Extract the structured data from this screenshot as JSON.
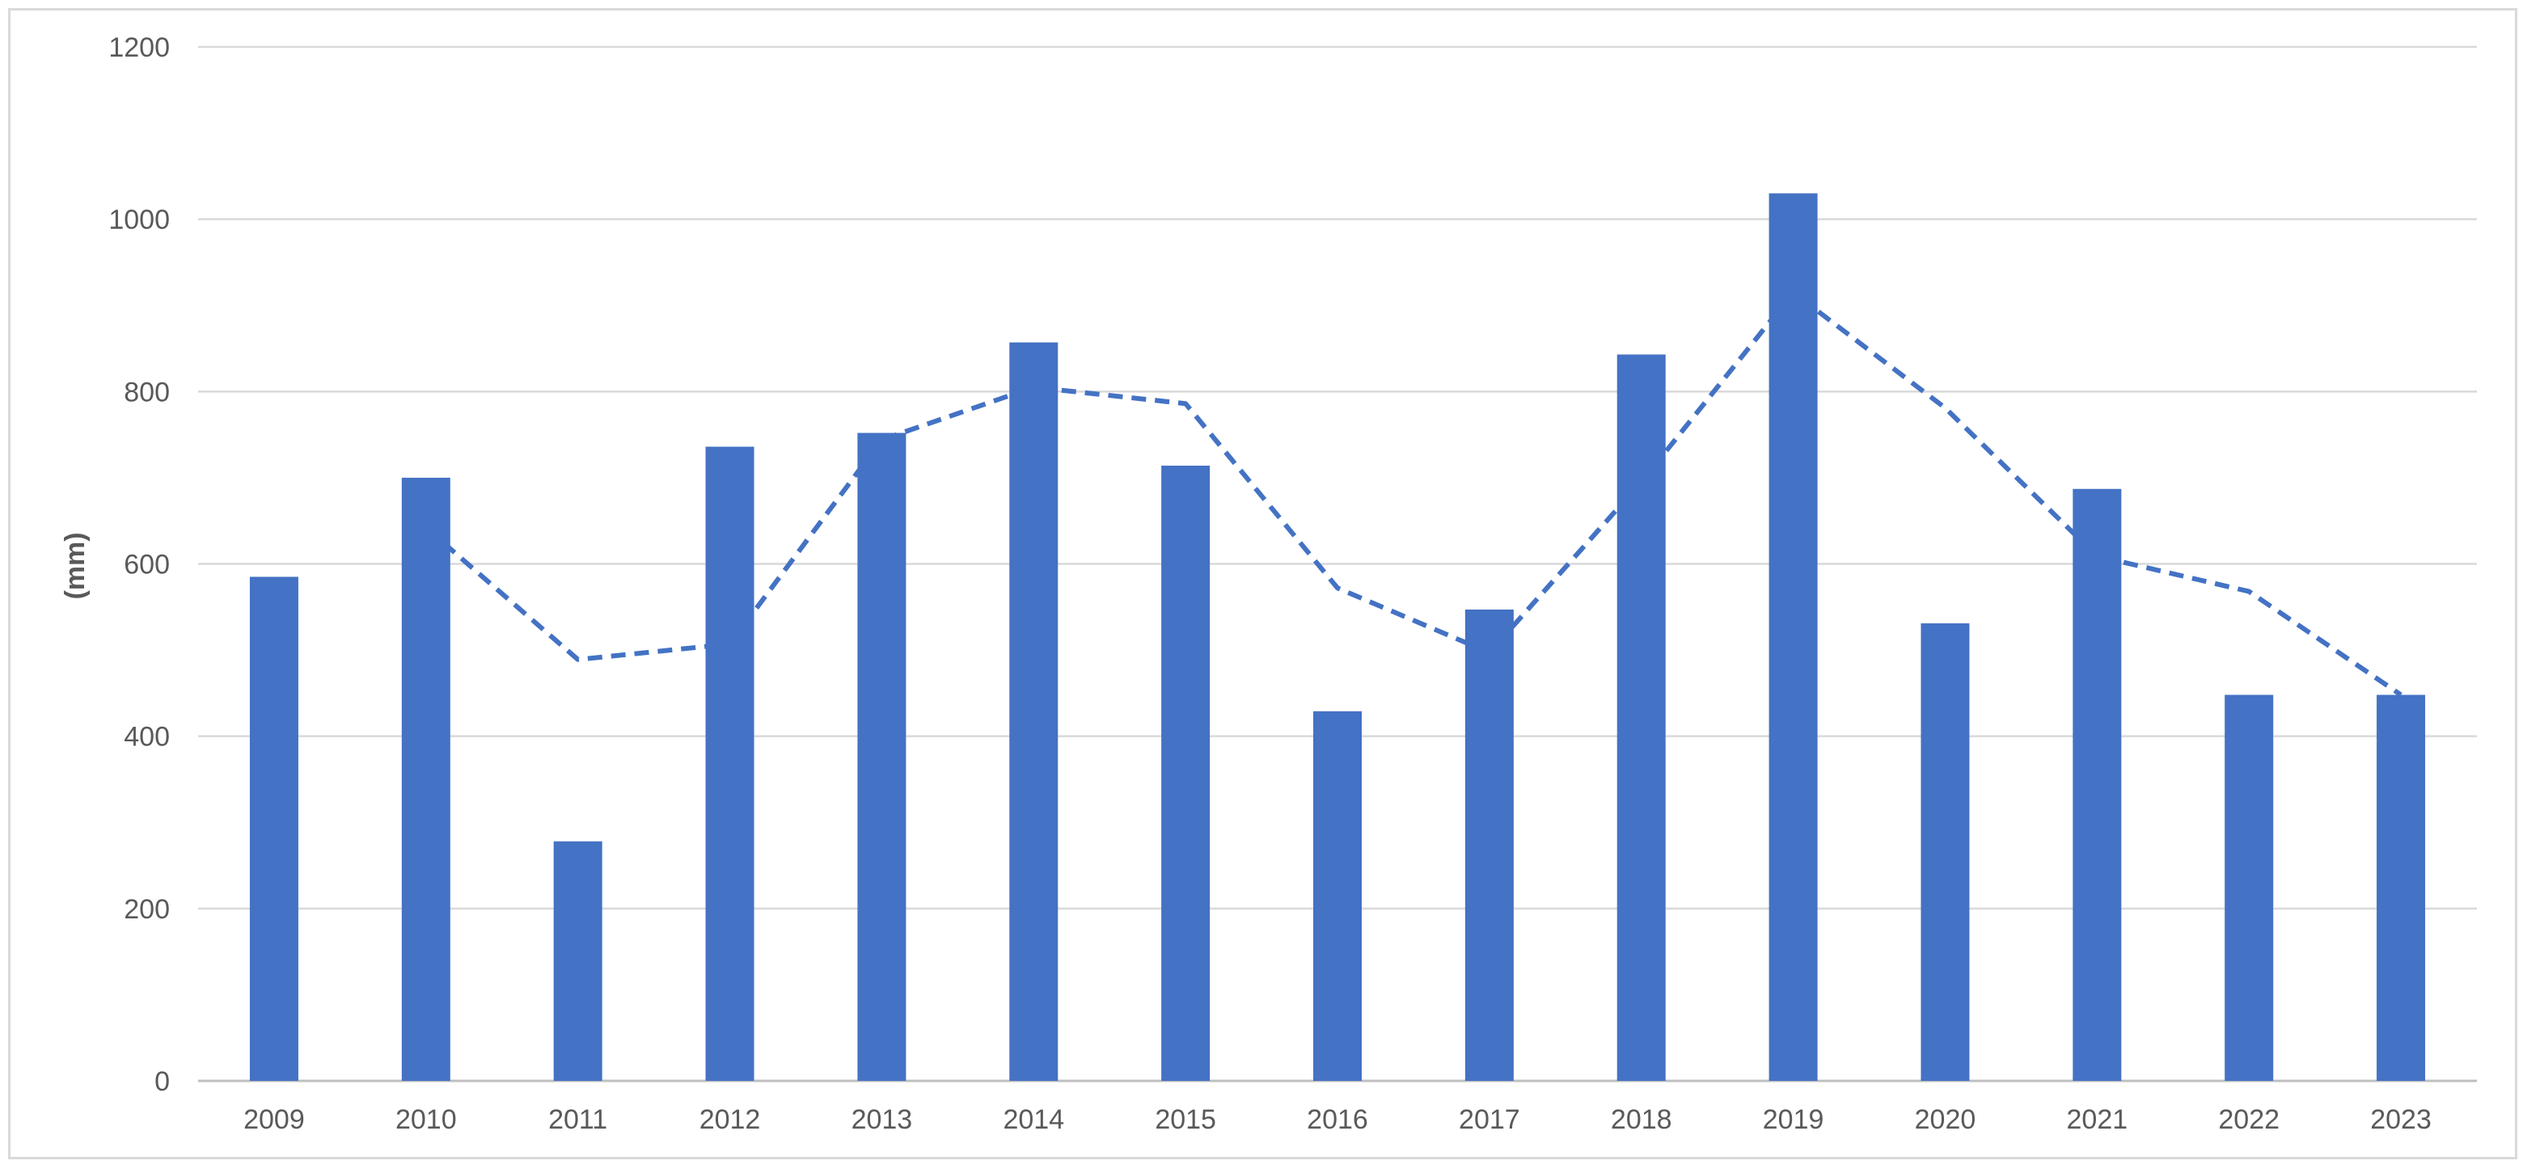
{
  "chart_data": {
    "type": "bar",
    "title": "",
    "xlabel": "",
    "ylabel": "(mm)",
    "ylim": [
      0,
      1200
    ],
    "yticks": [
      0,
      200,
      400,
      600,
      800,
      1000,
      1200
    ],
    "grid": true,
    "legend": "none",
    "categories": [
      "2009",
      "2010",
      "2011",
      "2012",
      "2013",
      "2014",
      "2015",
      "2016",
      "2017",
      "2018",
      "2019",
      "2020",
      "2021",
      "2022",
      "2023"
    ],
    "series": [
      {
        "type": "bar",
        "color": "#4472c4",
        "values": [
          585,
          700,
          278,
          736,
          752,
          857,
          714,
          429,
          547,
          843,
          1030,
          531,
          687,
          448,
          448
        ]
      },
      {
        "type": "line",
        "style": "dashed",
        "color": "#4472c4",
        "values": [
          null,
          642,
          489,
          507,
          744,
          805,
          786,
          572,
          497,
          695,
          915,
          781,
          609,
          568,
          448
        ]
      }
    ]
  }
}
